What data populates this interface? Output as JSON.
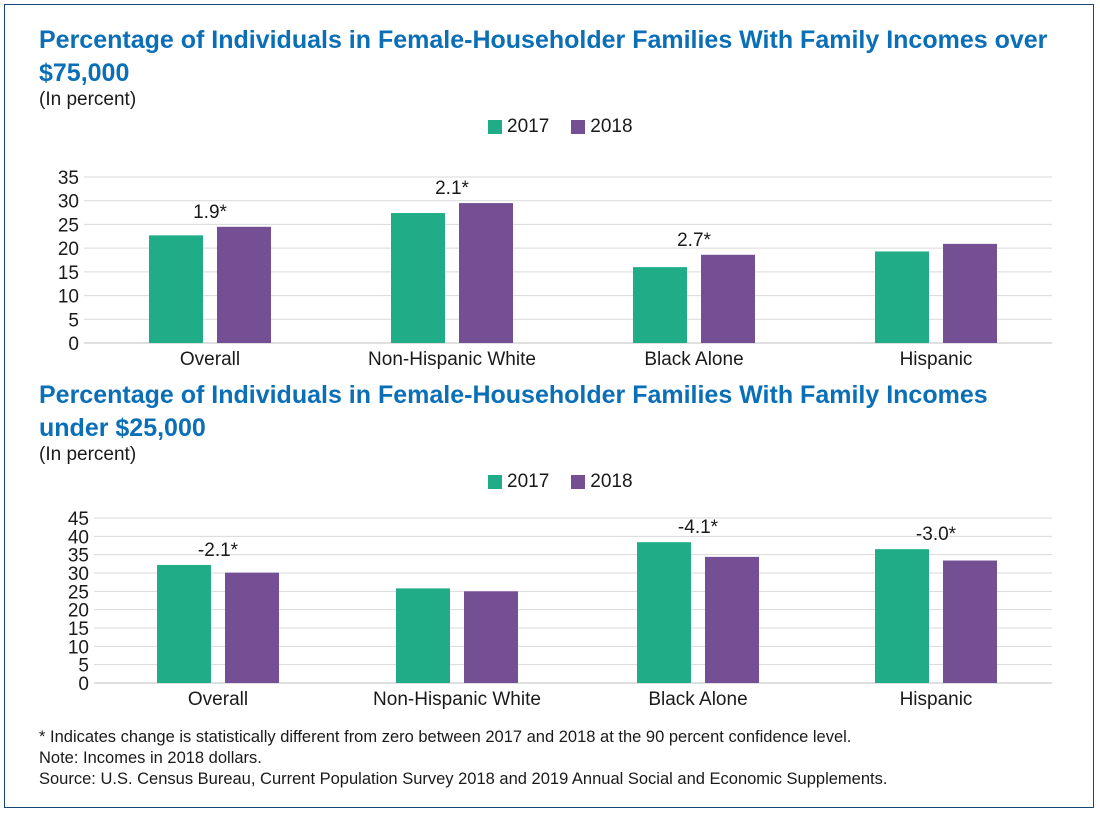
{
  "colors": {
    "title": "#0a6fb7",
    "series_2017": "#1fac87",
    "series_2018": "#744f94",
    "grid": "#d9d9d9",
    "frame": "#16467a"
  },
  "chart_data": [
    {
      "type": "bar",
      "title": "Percentage of Individuals in Female-Householder Families With Family Incomes over $75,000",
      "subtitle": "(In percent)",
      "categories": [
        "Overall",
        "Non-Hispanic White",
        "Black Alone",
        "Hispanic"
      ],
      "series": [
        {
          "name": "2017",
          "values": [
            22.7,
            27.4,
            16.0,
            19.3
          ]
        },
        {
          "name": "2018",
          "values": [
            24.5,
            29.5,
            18.6,
            20.9
          ]
        }
      ],
      "annotations": [
        "1.9*",
        "2.1*",
        "2.7*",
        ""
      ],
      "ylim": [
        0,
        35
      ],
      "yticks": [
        0,
        5,
        10,
        15,
        20,
        25,
        30,
        35
      ],
      "grid": true,
      "legend": "top-center"
    },
    {
      "type": "bar",
      "title": "Percentage of Individuals in Female-Householder Families With Family Incomes under $25,000",
      "subtitle": "(In percent)",
      "categories": [
        "Overall",
        "Non-Hispanic White",
        "Black Alone",
        "Hispanic"
      ],
      "series": [
        {
          "name": "2017",
          "values": [
            32.2,
            25.8,
            38.4,
            36.5
          ]
        },
        {
          "name": "2018",
          "values": [
            30.1,
            25.0,
            34.4,
            33.4
          ]
        }
      ],
      "annotations": [
        "-2.1*",
        "",
        "-4.1*",
        "-3.0*"
      ],
      "ylim": [
        0,
        45
      ],
      "yticks": [
        0,
        5,
        10,
        15,
        20,
        25,
        30,
        35,
        40,
        45
      ],
      "grid": true,
      "legend": "top-center"
    }
  ],
  "footnotes": {
    "significance": "* Indicates change is statistically different from zero between 2017 and 2018 at the 90 percent confidence level.",
    "note": "Note: Incomes in 2018 dollars.",
    "source": "Source: U.S. Census Bureau, Current Population Survey 2018 and 2019 Annual Social and Economic Supplements."
  }
}
